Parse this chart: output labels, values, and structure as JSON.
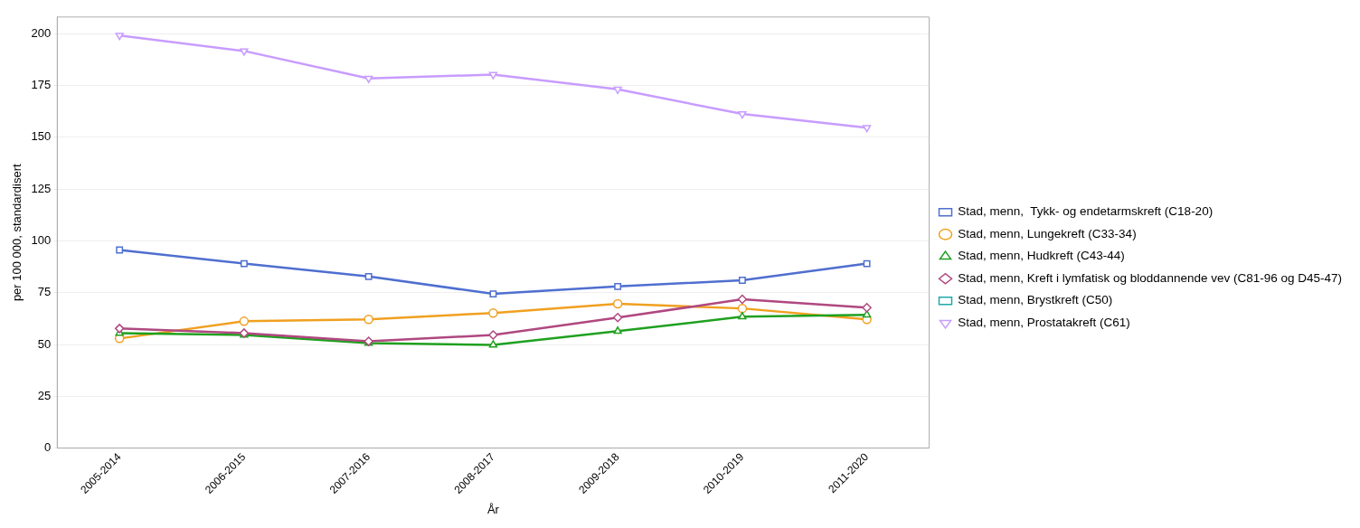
{
  "chart_data": {
    "type": "line",
    "xlabel": "År",
    "ylabel": "per 100 000, standardisert",
    "categories": [
      "2005-2014",
      "2006-2015",
      "2007-2016",
      "2008-2017",
      "2009-2018",
      "2010-2019",
      "2011-2020"
    ],
    "ylim": [
      0,
      208
    ],
    "yticks": [
      0,
      25,
      50,
      75,
      100,
      125,
      150,
      175,
      200
    ],
    "grid": "y",
    "legend": "right",
    "series": [
      {
        "name": "Stad, menn,  Tykk- og endetarmskreft (C18-20)",
        "color": "#4f6fcf",
        "marker": "square",
        "values": [
          95.6,
          89,
          82.8,
          74.4,
          78,
          81,
          89
        ]
      },
      {
        "name": "Stad, menn, Lungekreft (C33-34)",
        "color": "#f0a020",
        "marker": "circle",
        "values": [
          52.9,
          61.2,
          62.1,
          65.2,
          69.6,
          67.4,
          62.1
        ]
      },
      {
        "name": "Stad, menn, Hudkreft (C43-44)",
        "color": "#1fa01f",
        "marker": "triangle",
        "values": [
          55.5,
          54.6,
          50.7,
          49.8,
          56.4,
          63.4,
          64.3
        ]
      },
      {
        "name": "Stad, menn, Kreft i lymfatisk og bloddannende vev (C81-96 og D45-47)",
        "color": "#b04880",
        "marker": "diamond",
        "values": [
          57.7,
          55.5,
          51.5,
          54.6,
          63,
          71.8,
          67.8
        ]
      },
      {
        "name": "Stad, menn, Brystkreft (C50)",
        "color": "#20a8a8",
        "marker": "square",
        "values": [
          null,
          null,
          null,
          null,
          null,
          null,
          null
        ]
      },
      {
        "name": "Stad, menn, Prostatakreft (C61)",
        "color": "#c89cff",
        "marker": "triangle-down",
        "values": [
          199.1,
          191.6,
          178.4,
          180.2,
          173.1,
          161.2,
          154.6
        ]
      }
    ]
  }
}
